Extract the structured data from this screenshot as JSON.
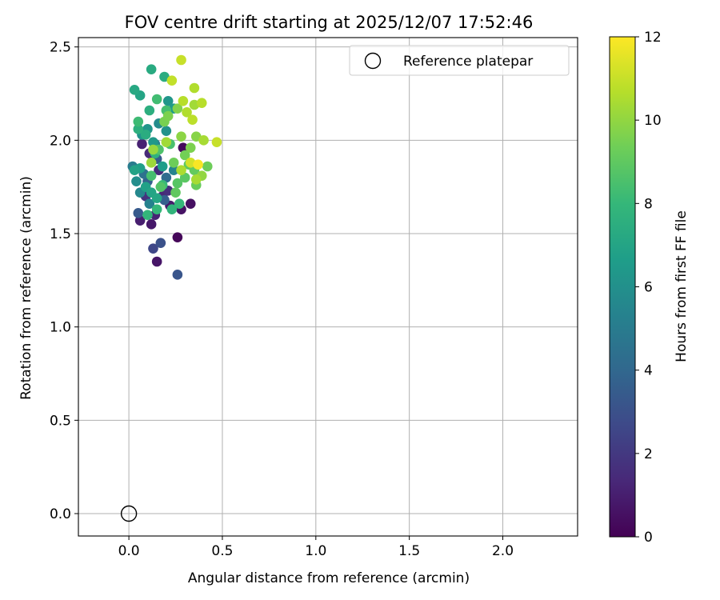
{
  "chart_data": {
    "type": "scatter",
    "title": "FOV centre drift starting at 2025/12/07 17:52:46",
    "xlabel": "Angular distance from reference (arcmin)",
    "ylabel": "Rotation from reference (arcmin)",
    "xlim": [
      -0.27,
      2.4
    ],
    "ylim": [
      -0.12,
      2.55
    ],
    "xticks": [
      0.0,
      0.5,
      1.0,
      1.5,
      2.0
    ],
    "xtick_labels": [
      "0.0",
      "0.5",
      "1.0",
      "1.5",
      "2.0"
    ],
    "yticks": [
      0.0,
      0.5,
      1.0,
      1.5,
      2.0,
      2.5
    ],
    "ytick_labels": [
      "0.0",
      "0.5",
      "1.0",
      "1.5",
      "2.0",
      "2.5"
    ],
    "grid": true,
    "legend": {
      "position": "top-right",
      "entries": [
        "Reference platepar"
      ]
    },
    "reference_point": {
      "x": 0.0,
      "y": 0.0,
      "label": "Reference platepar"
    },
    "colorbar": {
      "label": "Hours from first FF file",
      "range": [
        0,
        12
      ],
      "ticks": [
        0,
        2,
        4,
        6,
        8,
        10,
        12
      ],
      "tick_labels": [
        "0",
        "2",
        "4",
        "6",
        "8",
        "10",
        "12"
      ],
      "colormap": "viridis",
      "colormap_stops": [
        "#440154",
        "#482878",
        "#3e4989",
        "#31688e",
        "#26828e",
        "#1f9e89",
        "#35b779",
        "#6ece58",
        "#b5de2b",
        "#fde725"
      ]
    },
    "points": [
      {
        "x": 0.29,
        "y": 1.96,
        "t": 0.3
      },
      {
        "x": 0.26,
        "y": 1.48,
        "t": 0.2
      },
      {
        "x": 0.33,
        "y": 1.66,
        "t": 0.5
      },
      {
        "x": 0.28,
        "y": 1.63,
        "t": 0.6
      },
      {
        "x": 0.15,
        "y": 1.35,
        "t": 0.7
      },
      {
        "x": 0.22,
        "y": 1.65,
        "t": 0.9
      },
      {
        "x": 0.12,
        "y": 1.55,
        "t": 0.8
      },
      {
        "x": 0.06,
        "y": 1.57,
        "t": 1.0
      },
      {
        "x": 0.14,
        "y": 1.6,
        "t": 1.2
      },
      {
        "x": 0.18,
        "y": 1.7,
        "t": 1.3
      },
      {
        "x": 0.07,
        "y": 1.98,
        "t": 1.1
      },
      {
        "x": 0.11,
        "y": 1.93,
        "t": 1.4
      },
      {
        "x": 0.16,
        "y": 1.84,
        "t": 1.5
      },
      {
        "x": 0.21,
        "y": 1.73,
        "t": 1.6
      },
      {
        "x": 0.09,
        "y": 1.7,
        "t": 1.8
      },
      {
        "x": 0.13,
        "y": 1.42,
        "t": 2.6
      },
      {
        "x": 0.17,
        "y": 1.45,
        "t": 3.0
      },
      {
        "x": 0.26,
        "y": 1.28,
        "t": 3.2
      },
      {
        "x": 0.05,
        "y": 1.61,
        "t": 3.4
      },
      {
        "x": 0.19,
        "y": 1.68,
        "t": 3.6
      },
      {
        "x": 0.1,
        "y": 1.78,
        "t": 3.8
      },
      {
        "x": 0.15,
        "y": 1.9,
        "t": 3.5
      },
      {
        "x": 0.2,
        "y": 1.8,
        "t": 4.2
      },
      {
        "x": 0.08,
        "y": 1.82,
        "t": 4.5
      },
      {
        "x": 0.02,
        "y": 1.86,
        "t": 5.0
      },
      {
        "x": 0.14,
        "y": 1.98,
        "t": 5.2
      },
      {
        "x": 0.24,
        "y": 1.84,
        "t": 5.4
      },
      {
        "x": 0.11,
        "y": 1.66,
        "t": 5.3
      },
      {
        "x": 0.06,
        "y": 1.72,
        "t": 5.6
      },
      {
        "x": 0.04,
        "y": 1.78,
        "t": 5.9
      },
      {
        "x": 0.16,
        "y": 2.09,
        "t": 5.8
      },
      {
        "x": 0.2,
        "y": 2.05,
        "t": 6.1
      },
      {
        "x": 0.07,
        "y": 2.03,
        "t": 6.2
      },
      {
        "x": 0.1,
        "y": 2.06,
        "t": 6.3
      },
      {
        "x": 0.21,
        "y": 2.21,
        "t": 6.3
      },
      {
        "x": 0.24,
        "y": 2.17,
        "t": 6.5
      },
      {
        "x": 0.13,
        "y": 1.99,
        "t": 6.4
      },
      {
        "x": 0.18,
        "y": 1.86,
        "t": 6.6
      },
      {
        "x": 0.06,
        "y": 1.85,
        "t": 6.7
      },
      {
        "x": 0.03,
        "y": 1.84,
        "t": 6.9
      },
      {
        "x": 0.09,
        "y": 1.75,
        "t": 6.8
      },
      {
        "x": 0.12,
        "y": 1.72,
        "t": 7.0
      },
      {
        "x": 0.15,
        "y": 1.69,
        "t": 7.1
      },
      {
        "x": 0.03,
        "y": 2.27,
        "t": 7.2
      },
      {
        "x": 0.06,
        "y": 2.24,
        "t": 7.0
      },
      {
        "x": 0.12,
        "y": 2.38,
        "t": 7.3
      },
      {
        "x": 0.19,
        "y": 2.34,
        "t": 7.4
      },
      {
        "x": 0.11,
        "y": 2.16,
        "t": 7.5
      },
      {
        "x": 0.05,
        "y": 2.06,
        "t": 7.6
      },
      {
        "x": 0.09,
        "y": 2.03,
        "t": 7.4
      },
      {
        "x": 0.14,
        "y": 1.93,
        "t": 7.7
      },
      {
        "x": 0.23,
        "y": 1.63,
        "t": 7.8
      },
      {
        "x": 0.1,
        "y": 1.6,
        "t": 7.9
      },
      {
        "x": 0.15,
        "y": 1.63,
        "t": 8.0
      },
      {
        "x": 0.18,
        "y": 1.76,
        "t": 8.1
      },
      {
        "x": 0.27,
        "y": 1.66,
        "t": 8.0
      },
      {
        "x": 0.05,
        "y": 2.1,
        "t": 8.2
      },
      {
        "x": 0.15,
        "y": 2.22,
        "t": 8.3
      },
      {
        "x": 0.2,
        "y": 2.16,
        "t": 8.4
      },
      {
        "x": 0.22,
        "y": 1.98,
        "t": 8.5
      },
      {
        "x": 0.16,
        "y": 1.95,
        "t": 8.6
      },
      {
        "x": 0.12,
        "y": 1.81,
        "t": 8.4
      },
      {
        "x": 0.17,
        "y": 1.75,
        "t": 8.7
      },
      {
        "x": 0.26,
        "y": 1.77,
        "t": 8.8
      },
      {
        "x": 0.3,
        "y": 1.8,
        "t": 8.9
      },
      {
        "x": 0.32,
        "y": 1.87,
        "t": 9.0
      },
      {
        "x": 0.35,
        "y": 1.84,
        "t": 9.1
      },
      {
        "x": 0.36,
        "y": 1.76,
        "t": 9.2
      },
      {
        "x": 0.25,
        "y": 1.72,
        "t": 9.0
      },
      {
        "x": 0.42,
        "y": 1.86,
        "t": 9.3
      },
      {
        "x": 0.3,
        "y": 1.92,
        "t": 9.4
      },
      {
        "x": 0.24,
        "y": 1.88,
        "t": 9.3
      },
      {
        "x": 0.19,
        "y": 2.1,
        "t": 9.5
      },
      {
        "x": 0.21,
        "y": 2.13,
        "t": 9.6
      },
      {
        "x": 0.26,
        "y": 2.17,
        "t": 9.7
      },
      {
        "x": 0.36,
        "y": 2.02,
        "t": 9.8
      },
      {
        "x": 0.33,
        "y": 1.96,
        "t": 9.6
      },
      {
        "x": 0.28,
        "y": 2.02,
        "t": 9.9
      },
      {
        "x": 0.39,
        "y": 1.81,
        "t": 10.0
      },
      {
        "x": 0.13,
        "y": 1.95,
        "t": 10.1
      },
      {
        "x": 0.12,
        "y": 1.88,
        "t": 10.2
      },
      {
        "x": 0.2,
        "y": 1.99,
        "t": 10.3
      },
      {
        "x": 0.35,
        "y": 2.19,
        "t": 10.3
      },
      {
        "x": 0.36,
        "y": 1.79,
        "t": 10.4
      },
      {
        "x": 0.28,
        "y": 1.84,
        "t": 10.5
      },
      {
        "x": 0.4,
        "y": 2.0,
        "t": 10.4
      },
      {
        "x": 0.31,
        "y": 2.15,
        "t": 10.6
      },
      {
        "x": 0.29,
        "y": 2.21,
        "t": 10.7
      },
      {
        "x": 0.34,
        "y": 2.11,
        "t": 10.8
      },
      {
        "x": 0.39,
        "y": 2.2,
        "t": 10.7
      },
      {
        "x": 0.35,
        "y": 2.28,
        "t": 10.6
      },
      {
        "x": 0.23,
        "y": 2.32,
        "t": 10.9
      },
      {
        "x": 0.28,
        "y": 2.43,
        "t": 11.0
      },
      {
        "x": 0.47,
        "y": 1.99,
        "t": 11.0
      },
      {
        "x": 0.33,
        "y": 1.88,
        "t": 11.2
      },
      {
        "x": 0.37,
        "y": 1.87,
        "t": 11.9
      }
    ]
  }
}
